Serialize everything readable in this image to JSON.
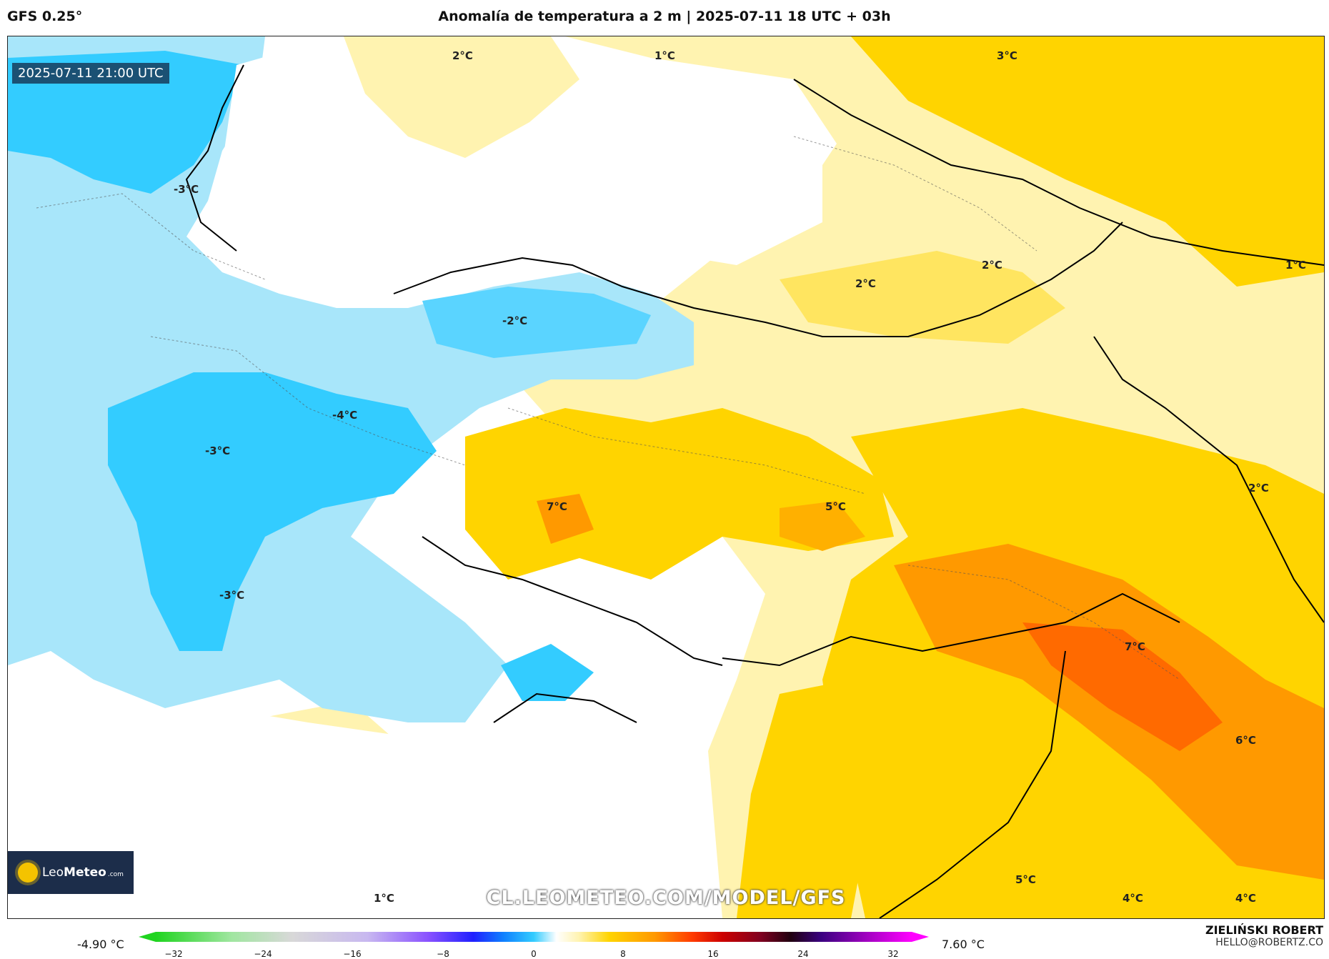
{
  "header": {
    "model": "GFS 0.25°",
    "title": "Anomalía de temperatura a 2 m | 2025-07-11 18 UTC + 03h"
  },
  "map": {
    "valid_time": "2025-07-11 21:00 UTC",
    "labels": [
      "2°C",
      "1°C",
      "3°C",
      "-3°C",
      "2°C",
      "2°C",
      "1°C",
      "-2°C",
      "-4°C",
      "-3°C",
      "7°C",
      "5°C",
      "2°C",
      "-3°C",
      "7°C",
      "6°C",
      "1°C",
      "5°C",
      "4°C",
      "4°C"
    ],
    "watermark_url": "CL.LEOMETEO.COM/MODEL/GFS",
    "logo": {
      "brand_regular": "Leo",
      "brand_bold": "Meteo",
      "domain": ".com"
    },
    "colors": {
      "cold": "#33ccff",
      "cool": "#a8e6fa",
      "warm_light": "#fff3b0",
      "warm": "#ffd400",
      "hot": "#ff9900",
      "hotter": "#ff6a00"
    }
  },
  "colorbar": {
    "min_label": "-4.90 °C",
    "max_label": "7.60 °C",
    "ticks": [
      "−32",
      "−24",
      "−16",
      "−8",
      "0",
      "8",
      "16",
      "24",
      "32"
    ]
  },
  "credit": {
    "name": "ZIELIŃSKI ROBERT",
    "email": "HELLO@ROBERTZ.CO"
  }
}
